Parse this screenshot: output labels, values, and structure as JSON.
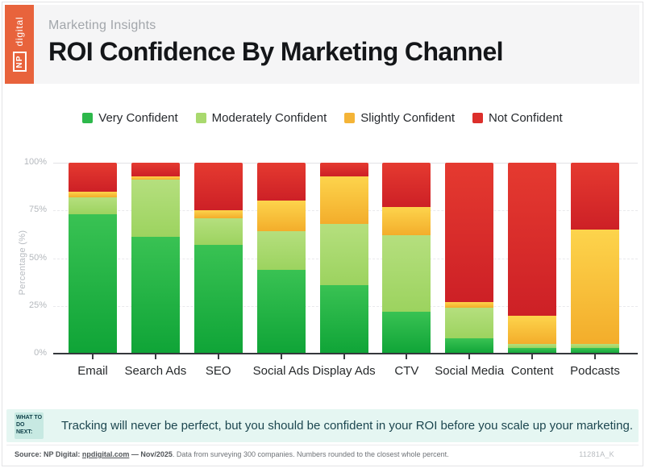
{
  "page": {
    "eyebrow": "Marketing Insights",
    "title": "ROI Confidence By Marketing Channel",
    "brand": {
      "np": "NP",
      "digital": "digital",
      "orange": "#E8633C"
    }
  },
  "chart_data": {
    "type": "bar",
    "stacked": true,
    "title": "ROI Confidence By Marketing Channel",
    "categories": [
      "Email",
      "Search Ads",
      "SEO",
      "Social Ads",
      "Display Ads",
      "CTV",
      "Social Media",
      "Content",
      "Podcasts"
    ],
    "series": [
      {
        "name": "Very Confident",
        "color": "#2DB84B",
        "color_top": "#39C253",
        "color_bottom": "#0FA437",
        "values": [
          73,
          61,
          57,
          44,
          36,
          22,
          8,
          3,
          3
        ]
      },
      {
        "name": "Moderately Confident",
        "color": "#A9D96E",
        "color_top": "#B5DF7E",
        "color_bottom": "#9CD35F",
        "values": [
          9,
          30,
          14,
          20,
          32,
          40,
          16,
          2,
          2
        ]
      },
      {
        "name": "Slightly Confident",
        "color": "#F4B437",
        "color_top": "#FDD44C",
        "color_bottom": "#F3AD2B",
        "values": [
          3,
          2,
          4,
          16,
          25,
          15,
          3,
          15,
          60
        ]
      },
      {
        "name": "Not Confident",
        "color": "#DC2F2B",
        "color_top": "#E53A30",
        "color_bottom": "#CD2026",
        "values": [
          15,
          7,
          25,
          20,
          7,
          23,
          73,
          80,
          35
        ]
      }
    ],
    "xlabel": "",
    "ylabel": "Percentage (%)",
    "yticks": [
      "0%",
      "25%",
      "50%",
      "75%",
      "100%"
    ],
    "ylim": [
      0,
      100
    ],
    "grid": true,
    "legend_position": "top"
  },
  "callout": {
    "label": "WHAT TO DO NEXT:",
    "text": "Tracking will never be perfect, but you should be confident in your ROI before you scale up your marketing."
  },
  "source": {
    "prefix": "Source: NP Digital: ",
    "link": "npdigital.com",
    "separator": " — ",
    "date": "Nov/2025",
    "rest": ". Data from surveying 300 companies. Numbers rounded to the closest whole percent.",
    "code": "11281A_K"
  }
}
